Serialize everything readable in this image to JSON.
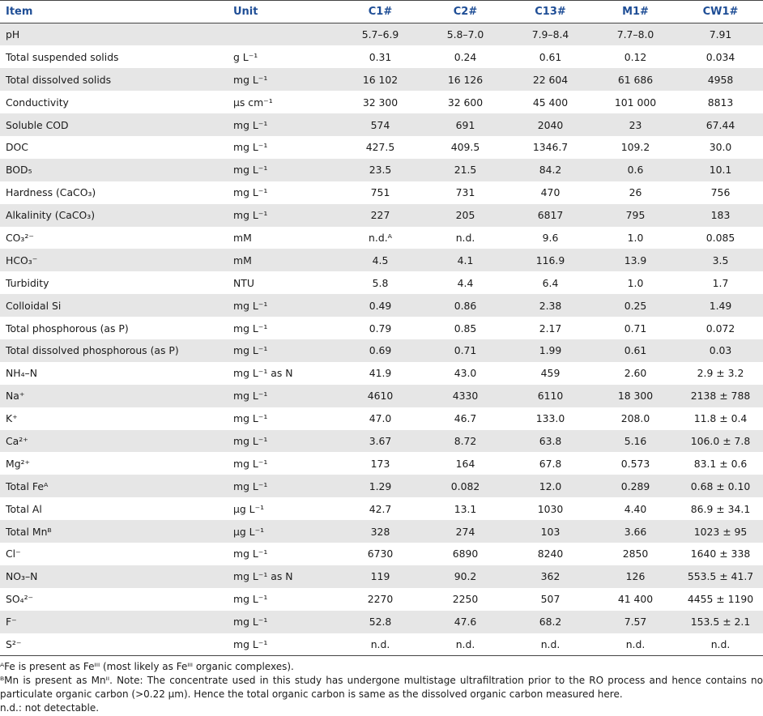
{
  "header": {
    "item": "Item",
    "unit": "Unit",
    "c1": "C1#",
    "c2": "C2#",
    "c13": "C13#",
    "m1": "M1#",
    "cw1": "CW1#"
  },
  "rows": [
    {
      "item": "pH",
      "unit": "",
      "c1": "5.7–6.9",
      "c2": "5.8–7.0",
      "c13": "7.9–8.4",
      "m1": "7.7–8.0",
      "cw1": "7.91"
    },
    {
      "item": "Total suspended solids",
      "unit": "g L⁻¹",
      "c1": "0.31",
      "c2": "0.24",
      "c13": "0.61",
      "m1": "0.12",
      "cw1": "0.034"
    },
    {
      "item": "Total dissolved solids",
      "unit": "mg L⁻¹",
      "c1": "16 102",
      "c2": "16 126",
      "c13": "22 604",
      "m1": "61 686",
      "cw1": "4958"
    },
    {
      "item": "Conductivity",
      "unit": "μs cm⁻¹",
      "c1": "32 300",
      "c2": "32 600",
      "c13": "45 400",
      "m1": "101 000",
      "cw1": "8813"
    },
    {
      "item": "Soluble COD",
      "unit": "mg L⁻¹",
      "c1": "574",
      "c2": "691",
      "c13": "2040",
      "m1": "23",
      "cw1": "67.44"
    },
    {
      "item": "DOC",
      "unit": "mg L⁻¹",
      "c1": "427.5",
      "c2": "409.5",
      "c13": "1346.7",
      "m1": "109.2",
      "cw1": "30.0"
    },
    {
      "item": "BOD₅",
      "unit": "mg L⁻¹",
      "c1": "23.5",
      "c2": "21.5",
      "c13": "84.2",
      "m1": "0.6",
      "cw1": "10.1"
    },
    {
      "item": "Hardness (CaCO₃)",
      "unit": "mg L⁻¹",
      "c1": "751",
      "c2": "731",
      "c13": "470",
      "m1": "26",
      "cw1": "756"
    },
    {
      "item": "Alkalinity (CaCO₃)",
      "unit": "mg L⁻¹",
      "c1": "227",
      "c2": "205",
      "c13": "6817",
      "m1": "795",
      "cw1": "183"
    },
    {
      "item": "CO₃²⁻",
      "unit": "mM",
      "c1": "n.d.ᴬ",
      "c2": "n.d.",
      "c13": "9.6",
      "m1": "1.0",
      "cw1": "0.085"
    },
    {
      "item": "HCO₃⁻",
      "unit": "mM",
      "c1": "4.5",
      "c2": "4.1",
      "c13": "116.9",
      "m1": "13.9",
      "cw1": "3.5"
    },
    {
      "item": "Turbidity",
      "unit": "NTU",
      "c1": "5.8",
      "c2": "4.4",
      "c13": "6.4",
      "m1": "1.0",
      "cw1": "1.7"
    },
    {
      "item": "Colloidal Si",
      "unit": "mg L⁻¹",
      "c1": "0.49",
      "c2": "0.86",
      "c13": "2.38",
      "m1": "0.25",
      "cw1": "1.49"
    },
    {
      "item": "Total phosphorous (as P)",
      "unit": "mg L⁻¹",
      "c1": "0.79",
      "c2": "0.85",
      "c13": "2.17",
      "m1": "0.71",
      "cw1": "0.072"
    },
    {
      "item": "Total dissolved phosphorous (as P)",
      "unit": "mg L⁻¹",
      "c1": "0.69",
      "c2": "0.71",
      "c13": "1.99",
      "m1": "0.61",
      "cw1": "0.03"
    },
    {
      "item": "NH₄–N",
      "unit": "mg L⁻¹ as N",
      "c1": "41.9",
      "c2": "43.0",
      "c13": "459",
      "m1": "2.60",
      "cw1": "2.9 ± 3.2"
    },
    {
      "item": "Na⁺",
      "unit": "mg L⁻¹",
      "c1": "4610",
      "c2": "4330",
      "c13": "6110",
      "m1": "18 300",
      "cw1": "2138 ± 788"
    },
    {
      "item": "K⁺",
      "unit": "mg L⁻¹",
      "c1": "47.0",
      "c2": "46.7",
      "c13": "133.0",
      "m1": "208.0",
      "cw1": "11.8 ± 0.4"
    },
    {
      "item": "Ca²⁺",
      "unit": "mg L⁻¹",
      "c1": "3.67",
      "c2": "8.72",
      "c13": "63.8",
      "m1": "5.16",
      "cw1": "106.0 ± 7.8"
    },
    {
      "item": "Mg²⁺",
      "unit": "mg L⁻¹",
      "c1": "173",
      "c2": "164",
      "c13": "67.8",
      "m1": "0.573",
      "cw1": "83.1 ± 0.6"
    },
    {
      "item": "Total Feᴬ",
      "unit": "mg L⁻¹",
      "c1": "1.29",
      "c2": "0.082",
      "c13": "12.0",
      "m1": "0.289",
      "cw1": "0.68 ± 0.10"
    },
    {
      "item": "Total Al",
      "unit": "μg L⁻¹",
      "c1": "42.7",
      "c2": "13.1",
      "c13": "1030",
      "m1": "4.40",
      "cw1": "86.9 ± 34.1"
    },
    {
      "item": "Total Mnᴮ",
      "unit": "μg L⁻¹",
      "c1": "328",
      "c2": "274",
      "c13": "103",
      "m1": "3.66",
      "cw1": "1023 ± 95"
    },
    {
      "item": "Cl⁻",
      "unit": "mg L⁻¹",
      "c1": "6730",
      "c2": "6890",
      "c13": "8240",
      "m1": "2850",
      "cw1": "1640 ± 338"
    },
    {
      "item": "NO₃–N",
      "unit": "mg L⁻¹ as N",
      "c1": "119",
      "c2": "90.2",
      "c13": "362",
      "m1": "126",
      "cw1": "553.5 ± 41.7"
    },
    {
      "item": "SO₄²⁻",
      "unit": "mg L⁻¹",
      "c1": "2270",
      "c2": "2250",
      "c13": "507",
      "m1": "41 400",
      "cw1": "4455 ± 1190"
    },
    {
      "item": "F⁻",
      "unit": "mg L⁻¹",
      "c1": "52.8",
      "c2": "47.6",
      "c13": "68.2",
      "m1": "7.57",
      "cw1": "153.5 ± 2.1"
    },
    {
      "item": "S²⁻",
      "unit": "mg L⁻¹",
      "c1": "n.d.",
      "c2": "n.d.",
      "c13": "n.d.",
      "m1": "n.d.",
      "cw1": "n.d."
    }
  ],
  "footnotes": {
    "a": "ᴬFe is present as Feᴵᴵᴵ (most likely as Feᴵᴵᴵ organic complexes).",
    "b": "ᴮMn is present as Mnᴵᴵ. Note: The concentrate used in this study has undergone multistage ultrafiltration prior to the RO process and hence contains no particulate organic carbon (>0.22 μm). Hence the total organic carbon is same as the dissolved organic carbon measured here.",
    "nd": "n.d.: not detectable."
  }
}
